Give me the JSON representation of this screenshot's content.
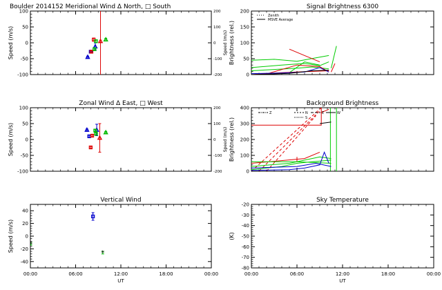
{
  "chart_data": [
    {
      "id": "meridional",
      "type": "scatter",
      "title": "Boulder   2014152     Meridional Wind   Δ North, □ South",
      "xlabel": "",
      "ylabel": "Speed (m/s)",
      "ylabel_right": "Speed (m/s)",
      "xlim": [
        0,
        24
      ],
      "ylim": [
        -100,
        100
      ],
      "ylim_right": [
        -200,
        200
      ],
      "yticks": [
        100,
        50,
        0,
        -50,
        -100
      ],
      "yticks_right": [
        200,
        100,
        0,
        -100,
        -200
      ],
      "series": [
        {
          "color": "#0000cc",
          "points": [
            {
              "x": 8.0,
              "y": -28,
              "err": 3,
              "marker": "square"
            },
            {
              "x": 7.6,
              "y": -45,
              "err": 3,
              "marker": "triangle"
            },
            {
              "x": 8.6,
              "y": -12,
              "err": 12,
              "marker": "triangle"
            }
          ]
        },
        {
          "color": "#dd0000",
          "points": [
            {
              "x": 8.4,
              "y": 10,
              "err": 5,
              "marker": "square"
            },
            {
              "x": 8.1,
              "y": -28,
              "err": 3,
              "marker": "square"
            },
            {
              "x": 9.3,
              "y": 5,
              "err": 110,
              "marker": "triangle"
            }
          ]
        },
        {
          "color": "#00bb00",
          "points": [
            {
              "x": 8.7,
              "y": 5,
              "err": 4,
              "marker": "square"
            },
            {
              "x": 10.0,
              "y": 10,
              "err": 4,
              "marker": "triangle"
            },
            {
              "x": 8.5,
              "y": -20,
              "err": 3,
              "marker": "square"
            }
          ]
        }
      ]
    },
    {
      "id": "zonal",
      "type": "scatter",
      "title": "Zonal Wind      Δ East, □ West",
      "xlabel": "",
      "ylabel": "Speed (m/s)",
      "ylabel_right": "Speed (m/s)",
      "xlim": [
        0,
        24
      ],
      "ylim": [
        -100,
        100
      ],
      "ylim_right": [
        -200,
        200
      ],
      "yticks": [
        100,
        50,
        0,
        -50,
        -100
      ],
      "yticks_right": [
        200,
        100,
        0,
        -100,
        -200
      ],
      "series": [
        {
          "color": "#0000cc",
          "points": [
            {
              "x": 7.5,
              "y": 30,
              "err": 3,
              "marker": "triangle"
            },
            {
              "x": 7.8,
              "y": 10,
              "err": 3,
              "marker": "square"
            },
            {
              "x": 8.8,
              "y": 30,
              "err": 18,
              "marker": "triangle"
            }
          ]
        },
        {
          "color": "#dd0000",
          "points": [
            {
              "x": 8.2,
              "y": 12,
              "err": 3,
              "marker": "square"
            },
            {
              "x": 8.0,
              "y": -25,
              "err": 3,
              "marker": "square"
            },
            {
              "x": 9.2,
              "y": 5,
              "err": 45,
              "marker": "triangle"
            }
          ]
        },
        {
          "color": "#00bb00",
          "points": [
            {
              "x": 8.6,
              "y": 28,
              "err": 3,
              "marker": "square"
            },
            {
              "x": 10.0,
              "y": 22,
              "err": 3,
              "marker": "triangle"
            },
            {
              "x": 8.7,
              "y": 18,
              "err": 3,
              "marker": "square"
            }
          ]
        }
      ]
    },
    {
      "id": "vertical",
      "type": "scatter",
      "title": "Vertical Wind",
      "xlabel": "UT",
      "ylabel": "Speed (m/s)",
      "xlim": [
        0,
        24
      ],
      "ylim": [
        -50,
        50
      ],
      "yticks": [
        40,
        20,
        0,
        -20,
        -40
      ],
      "xticks": [
        "00:00",
        "06:00",
        "12:00",
        "18:00",
        "00:00"
      ],
      "series": [
        {
          "color": "#0000cc",
          "points": [
            {
              "x": 8.3,
              "y": 31,
              "err": 6,
              "marker": "square"
            }
          ]
        },
        {
          "color": "#00bb00",
          "points": [
            {
              "x": 0.05,
              "y": -12,
              "err": 2,
              "marker": "star"
            },
            {
              "x": 9.6,
              "y": -26,
              "err": 2,
              "marker": "star"
            }
          ]
        }
      ]
    },
    {
      "id": "signal",
      "type": "line",
      "title": "Signal Brightness       6300",
      "xlabel": "",
      "ylabel": "Brightness (rel.)",
      "xlim": [
        0,
        24
      ],
      "ylim": [
        0,
        200
      ],
      "yticks": [
        200,
        150,
        100,
        50,
        0
      ],
      "legend": [
        "Zenith",
        "MSVE Average"
      ],
      "legend_position": "top-left",
      "series": [
        {
          "color": "#00cc00",
          "lines": [
            [
              [
                0,
                45
              ],
              [
                3,
                48
              ],
              [
                6,
                42
              ],
              [
                9,
                55
              ],
              [
                10.2,
                60
              ]
            ],
            [
              [
                0,
                22
              ],
              [
                4,
                30
              ],
              [
                7,
                35
              ],
              [
                9,
                28
              ],
              [
                10.2,
                40
              ]
            ],
            [
              [
                0,
                12
              ],
              [
                3,
                16
              ],
              [
                6,
                20
              ],
              [
                8,
                24
              ],
              [
                10.2,
                18
              ]
            ],
            [
              [
                5,
                6
              ],
              [
                7,
                40
              ],
              [
                9,
                30
              ]
            ],
            [
              [
                10.5,
                20
              ],
              [
                11.2,
                90
              ]
            ]
          ]
        },
        {
          "color": "#dd0000",
          "lines": [
            [
              [
                0,
                0
              ],
              [
                4,
                6
              ],
              [
                6,
                8
              ],
              [
                8,
                10
              ],
              [
                10.2,
                12
              ]
            ],
            [
              [
                2,
                2
              ],
              [
                6,
                30
              ],
              [
                9,
                25
              ],
              [
                10.2,
                8
              ]
            ],
            [
              [
                5,
                80
              ],
              [
                7,
                60
              ],
              [
                9,
                40
              ]
            ],
            [
              [
                10.5,
                8
              ],
              [
                11,
                35
              ]
            ]
          ]
        },
        {
          "color": "#0000cc",
          "lines": [
            [
              [
                0,
                3
              ],
              [
                4,
                5
              ],
              [
                7,
                8
              ],
              [
                9,
                22
              ],
              [
                10.2,
                8
              ]
            ]
          ]
        },
        {
          "color": "#000000",
          "lines": [
            [
              [
                0,
                0
              ],
              [
                5,
                4
              ],
              [
                8,
                12
              ],
              [
                10.2,
                14
              ]
            ]
          ]
        }
      ]
    },
    {
      "id": "background",
      "type": "line",
      "title": "Background Brightness",
      "xlabel": "",
      "ylabel": "Brightness (rel.)",
      "xlim": [
        0,
        24
      ],
      "ylim": [
        0,
        400
      ],
      "yticks": [
        400,
        300,
        200,
        100,
        0
      ],
      "legend": [
        "Z",
        "N",
        "S",
        "E",
        "W"
      ],
      "legend_position": "top",
      "series": [
        {
          "color": "#dd0000",
          "lines": [
            [
              [
                0,
                290
              ],
              [
                9.2,
                290
              ],
              [
                9.2,
                400
              ]
            ],
            [
              [
                0,
                0
              ],
              [
                9.2,
                400
              ]
            ],
            [
              [
                1,
                0
              ],
              [
                9.0,
                380
              ]
            ],
            [
              [
                2,
                0
              ],
              [
                8.5,
                350
              ]
            ],
            [
              [
                0,
                50
              ],
              [
                7,
                80
              ],
              [
                9,
                120
              ]
            ],
            [
              [
                6,
                60
              ],
              [
                6,
                90
              ]
            ],
            [
              [
                9.2,
                370
              ],
              [
                10.2,
                390
              ]
            ]
          ]
        },
        {
          "color": "#00cc00",
          "lines": [
            [
              [
                0,
                30
              ],
              [
                5,
                50
              ],
              [
                7,
                70
              ],
              [
                9,
                90
              ],
              [
                10.5,
                80
              ]
            ],
            [
              [
                0,
                10
              ],
              [
                4,
                30
              ],
              [
                6,
                50
              ],
              [
                8,
                60
              ],
              [
                10.5,
                70
              ]
            ],
            [
              [
                0,
                60
              ],
              [
                6,
                60
              ],
              [
                10.5,
                50
              ]
            ],
            [
              [
                10.4,
                0
              ],
              [
                10.4,
                400
              ]
            ],
            [
              [
                11.2,
                0
              ],
              [
                11.2,
                400
              ]
            ]
          ]
        },
        {
          "color": "#0000cc",
          "lines": [
            [
              [
                0,
                5
              ],
              [
                5,
                10
              ],
              [
                7,
                20
              ],
              [
                9,
                40
              ],
              [
                9.6,
                120
              ],
              [
                10.2,
                50
              ]
            ],
            [
              [
                0,
                20
              ],
              [
                6,
                30
              ],
              [
                8.5,
                50
              ],
              [
                10.5,
                30
              ]
            ]
          ]
        },
        {
          "color": "#000000",
          "lines": [
            [
              [
                0,
                0
              ],
              [
                10.5,
                0
              ]
            ],
            [
              [
                9.0,
                300
              ],
              [
                10.5,
                310
              ]
            ]
          ]
        }
      ]
    },
    {
      "id": "skytemp",
      "type": "line",
      "title": "Sky Temperature",
      "xlabel": "UT",
      "ylabel": "(K)",
      "xlim": [
        0,
        24
      ],
      "ylim": [
        -80,
        -20
      ],
      "yticks": [
        -20,
        -30,
        -40,
        -50,
        -60,
        -70,
        -80
      ],
      "xticks": [
        "00:00",
        "06:00",
        "12:00",
        "18:00",
        "00:00"
      ],
      "series": []
    }
  ]
}
